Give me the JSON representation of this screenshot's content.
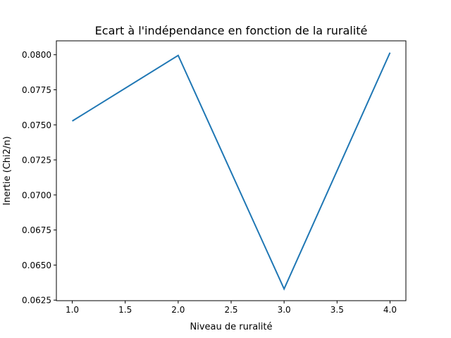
{
  "chart_data": {
    "type": "line",
    "title": "Ecart à l'indépendance en fonction de la ruralité",
    "xlabel": "Niveau de ruralité",
    "ylabel": "Inertie (Chi2/n)",
    "x": [
      1.0,
      2.0,
      3.0,
      4.0
    ],
    "series": [
      {
        "values": [
          0.07527,
          0.07995,
          0.0633,
          0.08015
        ]
      }
    ],
    "xlim": [
      0.85,
      4.15
    ],
    "ylim": [
      0.06246,
      0.08099
    ],
    "xticks": [
      1.0,
      1.5,
      2.0,
      2.5,
      3.0,
      3.5,
      4.0
    ],
    "xtick_labels": [
      "1.0",
      "1.5",
      "2.0",
      "2.5",
      "3.0",
      "3.5",
      "4.0"
    ],
    "yticks": [
      0.0625,
      0.065,
      0.0675,
      0.07,
      0.0725,
      0.075,
      0.0775,
      0.08
    ],
    "ytick_labels": [
      "0.0625",
      "0.0650",
      "0.0675",
      "0.0700",
      "0.0725",
      "0.0750",
      "0.0775",
      "0.0800"
    ],
    "grid": false,
    "line_color": "#1f77b4"
  }
}
